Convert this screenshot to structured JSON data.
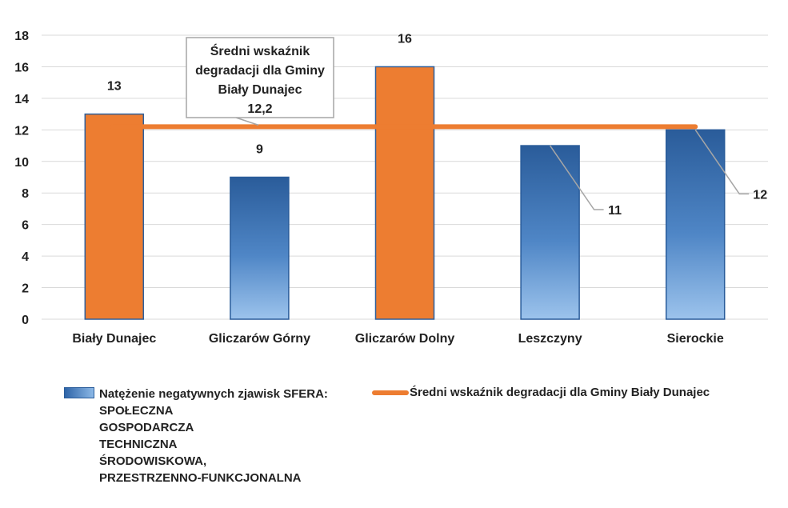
{
  "chart_data": {
    "type": "bar",
    "categories": [
      "Biały Dunajec",
      "Gliczarów Górny",
      "Gliczarów Dolny",
      "Leszczyny",
      "Sierockie"
    ],
    "series": [
      {
        "name": "Natężenie negatywnych zjawisk SFERA: SPOŁECZNA GOSPODARCZA TECHNICZNA ŚRODOWISKOWA, PRZESTRZENNO-FUNKCJONALNA",
        "values": [
          13,
          9,
          16,
          11,
          12
        ],
        "colors": [
          "#ed7d31",
          "#2e64a8",
          "#ed7d31",
          "#2e64a8",
          "#2e64a8"
        ],
        "data_labels": [
          "13",
          "9",
          "16",
          "11",
          "12"
        ]
      },
      {
        "name": "Średni wskaźnik degradacji dla Gminy Biały Dunajec",
        "type": "line",
        "value": 12.2,
        "color": "#ed7d31"
      }
    ],
    "yticks": [
      "0",
      "2",
      "4",
      "6",
      "8",
      "10",
      "12",
      "14",
      "16",
      "18"
    ],
    "ylim": [
      0,
      18
    ],
    "grid": true,
    "legend_position": "bottom",
    "callout": {
      "lines": [
        "Średni wskaźnik",
        "degradacji dla Gminy",
        "Biały Dunajec",
        "12,2"
      ]
    }
  },
  "legend": {
    "bar_lines": [
      "Natężenie negatywnych zjawisk SFERA:",
      "SPOŁECZNA",
      "GOSPODARCZA",
      "TECHNICZNA",
      "ŚRODOWISKOWA,",
      "PRZESTRZENNO-FUNKCJONALNA"
    ],
    "line_label": "Średni wskaźnik degradacji dla Gminy Biały Dunajec"
  }
}
